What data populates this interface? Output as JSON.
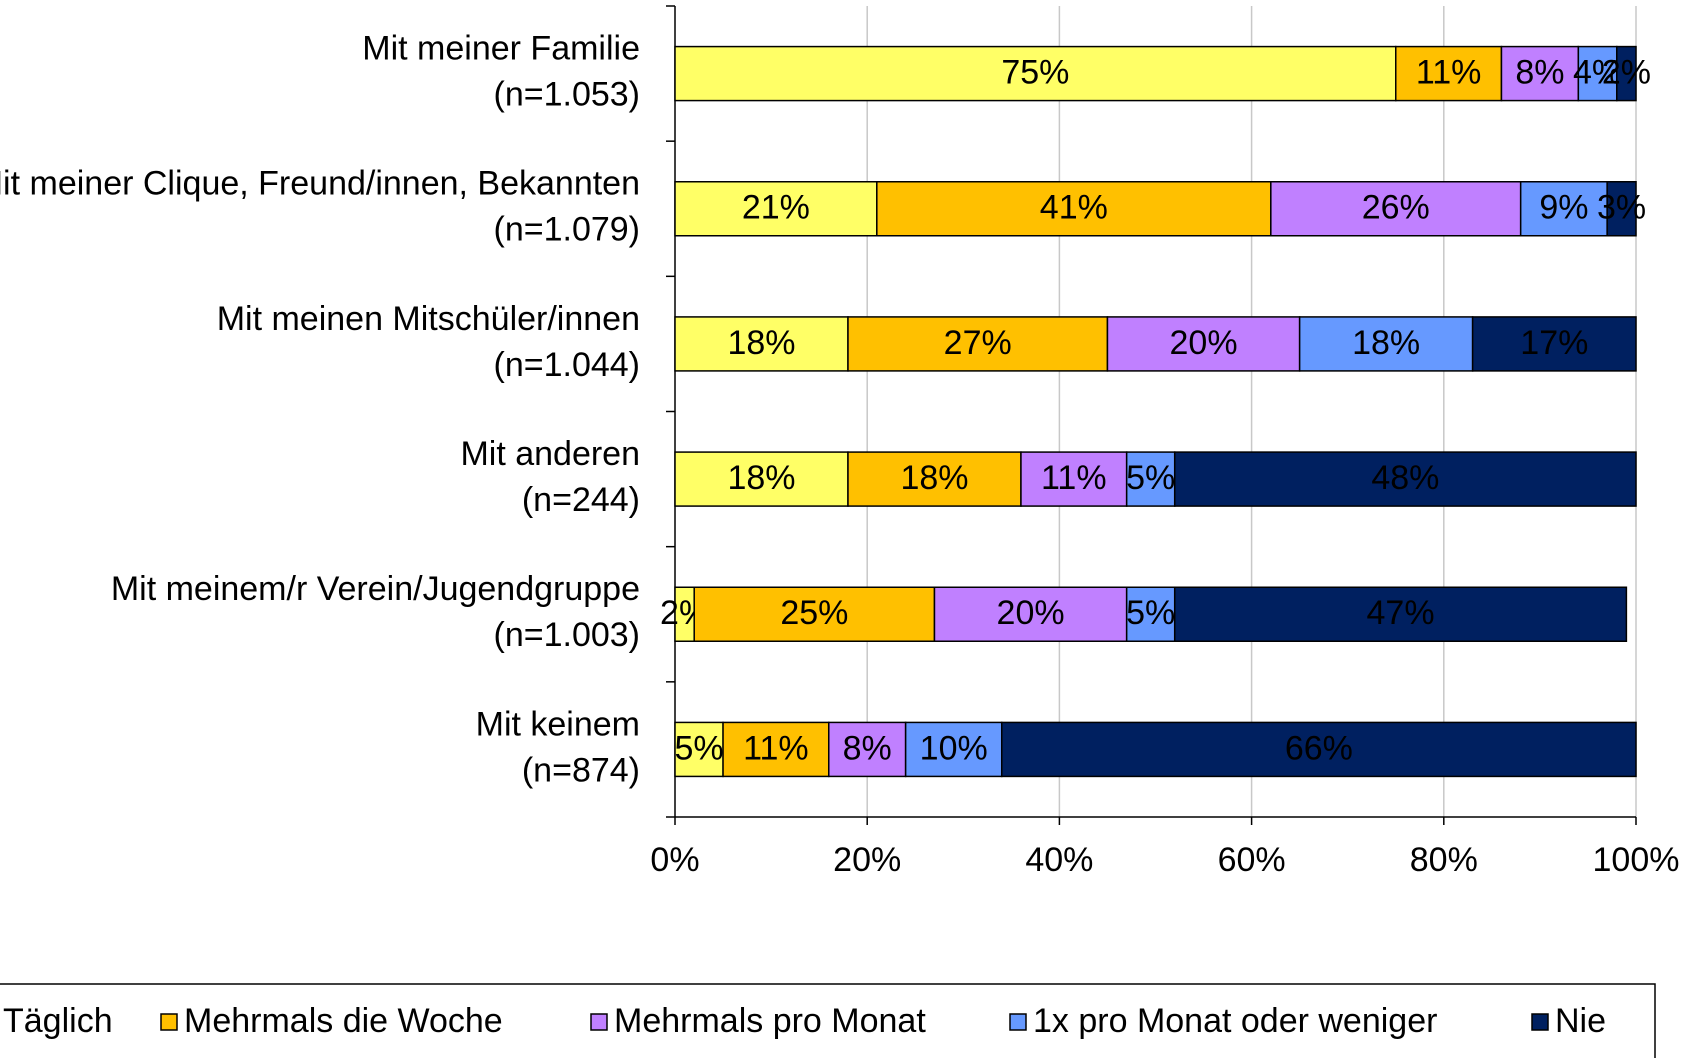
{
  "chart_data": {
    "type": "stacked-bar-horizontal",
    "categories": [
      [
        "Mit meiner Familie",
        "(n=1.053)"
      ],
      [
        "Mit meiner Clique, Freund/innen, Bekannten",
        "(n=1.079)"
      ],
      [
        "Mit meinen Mitschüler/innen",
        "(n=1.044)"
      ],
      [
        "Mit anderen",
        "(n=244)"
      ],
      [
        "Mit meinem/r Verein/Jugendgruppe",
        "(n=1.003)"
      ],
      [
        "Mit keinem",
        "(n=874)"
      ]
    ],
    "series": [
      {
        "name": "Täglich",
        "color": "#ffff66",
        "label_color": "#000000",
        "values": [
          75,
          21,
          18,
          18,
          2,
          5
        ],
        "value_labels": [
          "75%",
          "21%",
          "18%",
          "18%",
          "2%",
          "5%"
        ]
      },
      {
        "name": "Mehrmals die Woche",
        "color": "#ffc000",
        "label_color": "#000000",
        "values": [
          11,
          41,
          27,
          18,
          25,
          11
        ],
        "value_labels": [
          "11%",
          "41%",
          "27%",
          "18%",
          "25%",
          "11%"
        ]
      },
      {
        "name": "Mehrmals pro Monat",
        "color": "#c080ff",
        "label_color": "#000000",
        "values": [
          8,
          26,
          20,
          11,
          20,
          8
        ],
        "value_labels": [
          "8%",
          "26%",
          "20%",
          "11%",
          "20%",
          "8%"
        ]
      },
      {
        "name": "1x pro Monat oder weniger",
        "color": "#6699ff",
        "label_color": "#ffffff",
        "values": [
          4,
          9,
          18,
          5,
          5,
          10
        ],
        "value_labels": [
          "4%",
          "9%",
          "18%",
          "5%",
          "5%",
          "10%"
        ]
      },
      {
        "name": "Nie",
        "color": "#002060",
        "label_color": "#ffffff",
        "values": [
          2,
          3,
          17,
          48,
          47,
          66
        ],
        "value_labels": [
          "2%",
          "3%",
          "17%",
          "48%",
          "47%",
          "66%"
        ]
      }
    ],
    "xlim": [
      0,
      100
    ],
    "xticks": [
      {
        "value": 0,
        "label": "0%"
      },
      {
        "value": 20,
        "label": "20%"
      },
      {
        "value": 40,
        "label": "40%"
      },
      {
        "value": 60,
        "label": "60%"
      },
      {
        "value": 80,
        "label": "80%"
      },
      {
        "value": 100,
        "label": "100%"
      }
    ],
    "grid": true,
    "legend": "bottom"
  }
}
